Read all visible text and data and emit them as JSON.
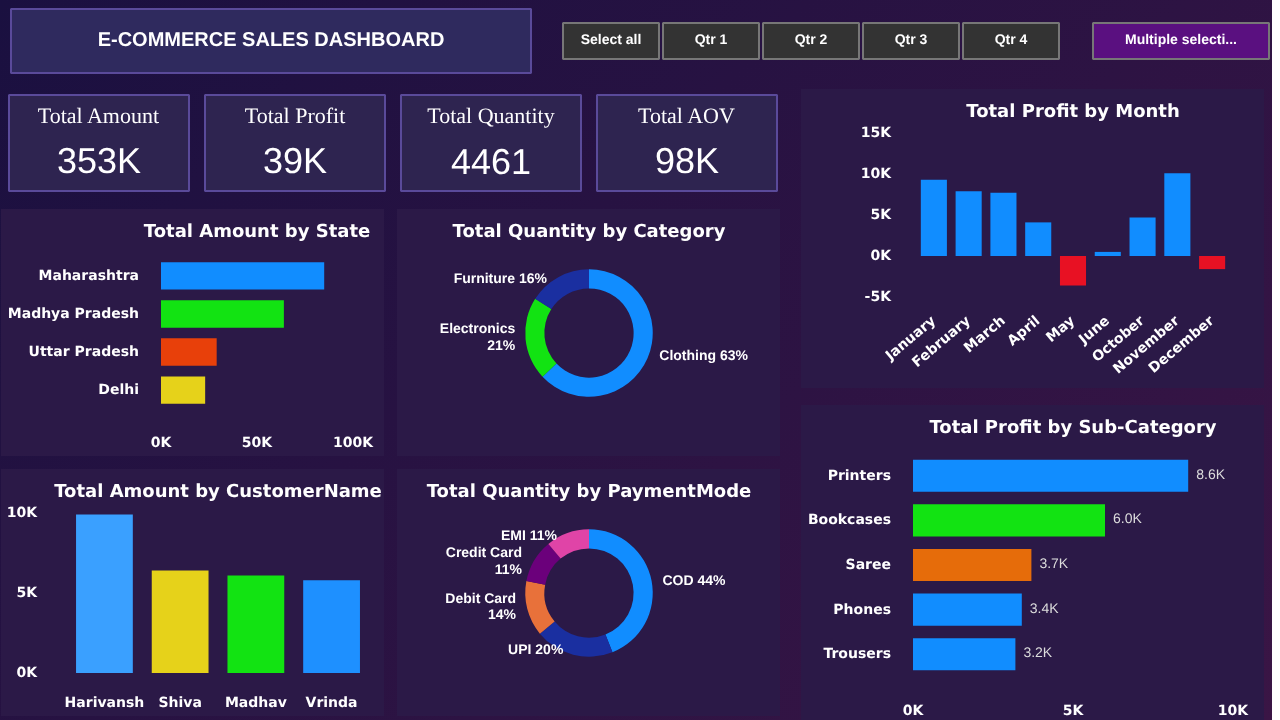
{
  "chart_data": [
    {
      "type": "other",
      "title": "E-COMMERCE SALES DASHBOARD",
      "annotations": [
        "Select all",
        "Qtr 1",
        "Qtr 2",
        "Qtr 3",
        "Qtr 4",
        "Multiple selecti..."
      ]
    },
    {
      "type": "other",
      "annotations": [
        "Total Amount",
        "353K",
        "Total Profit",
        "39K",
        "Total Quantity",
        "4461",
        "Total AOV",
        "98K"
      ]
    },
    {
      "type": "bar",
      "title": "Total Amount by State",
      "orientation": "horizontal",
      "categories": [
        "Maharashtra",
        "Madhya Pradesh",
        "Uttar Pradesh",
        "Delhi"
      ],
      "values": [
        85000,
        64000,
        29000,
        23000
      ],
      "colors": [
        "#118dff",
        "#12e312",
        "#e8400a",
        "#e6d21a"
      ],
      "xlim": [
        0,
        100000
      ],
      "xticks": [
        {
          "value": 0,
          "label": "0K"
        },
        {
          "value": 50000,
          "label": "50K"
        },
        {
          "value": 100000,
          "label": "100K"
        }
      ]
    },
    {
      "type": "donut",
      "title": "Total Quantity by Category",
      "categories": [
        "Clothing",
        "Electronics",
        "Furniture"
      ],
      "values": [
        63,
        21,
        16
      ],
      "value_labels": [
        "63%",
        "21%",
        "16%"
      ],
      "colors": [
        "#118dff",
        "#12e312",
        "#1a2fa0"
      ]
    },
    {
      "type": "bar",
      "title": "Total Amount by CustomerName",
      "categories": [
        "Harivansh",
        "Shiva",
        "Madhav",
        "Vrinda"
      ],
      "values": [
        9900,
        6400,
        6100,
        5800
      ],
      "colors": [
        "#3aa0ff",
        "#e6d21a",
        "#12e312",
        "#1e90ff"
      ],
      "ylim": [
        0,
        10000
      ],
      "yticks": [
        {
          "value": 0,
          "label": "0K"
        },
        {
          "value": 5000,
          "label": "5K"
        },
        {
          "value": 10000,
          "label": "10K"
        }
      ]
    },
    {
      "type": "donut",
      "title": "Total Quantity by PaymentMode",
      "categories": [
        "COD",
        "UPI",
        "Debit Card",
        "Credit Card",
        "EMI"
      ],
      "values": [
        44,
        20,
        14,
        11,
        11
      ],
      "value_labels": [
        "44%",
        "20%",
        "14%",
        "11%",
        "11%"
      ],
      "colors": [
        "#118dff",
        "#1a2fa0",
        "#e8713a",
        "#6b007b",
        "#e044a7"
      ]
    },
    {
      "type": "bar",
      "title": "Total Profit by Month",
      "categories": [
        "January",
        "February",
        "March",
        "April",
        "May",
        "June",
        "October",
        "November",
        "December"
      ],
      "values": [
        9300,
        7900,
        7700,
        4100,
        -3600,
        500,
        4700,
        10100,
        -1600
      ],
      "colors": [
        "#118dff",
        "#118dff",
        "#118dff",
        "#118dff",
        "#e81123",
        "#118dff",
        "#118dff",
        "#118dff",
        "#e81123"
      ],
      "ylim": [
        -5000,
        15000
      ],
      "yticks": [
        {
          "value": -5000,
          "label": "-5K"
        },
        {
          "value": 0,
          "label": "0K"
        },
        {
          "value": 5000,
          "label": "5K"
        },
        {
          "value": 10000,
          "label": "10K"
        },
        {
          "value": 15000,
          "label": "15K"
        }
      ]
    },
    {
      "type": "bar",
      "title": "Total Profit by Sub-Category",
      "orientation": "horizontal",
      "categories": [
        "Printers",
        "Bookcases",
        "Saree",
        "Phones",
        "Trousers"
      ],
      "values": [
        8600,
        6000,
        3700,
        3400,
        3200
      ],
      "value_labels": [
        "8.6K",
        "6.0K",
        "3.7K",
        "3.4K",
        "3.2K"
      ],
      "colors": [
        "#118dff",
        "#12e312",
        "#e66c0a",
        "#118dff",
        "#118dff"
      ],
      "xlim": [
        0,
        10000
      ],
      "xticks": [
        {
          "value": 0,
          "label": "0K"
        },
        {
          "value": 5000,
          "label": "5K"
        },
        {
          "value": 10000,
          "label": "10K"
        }
      ]
    }
  ]
}
